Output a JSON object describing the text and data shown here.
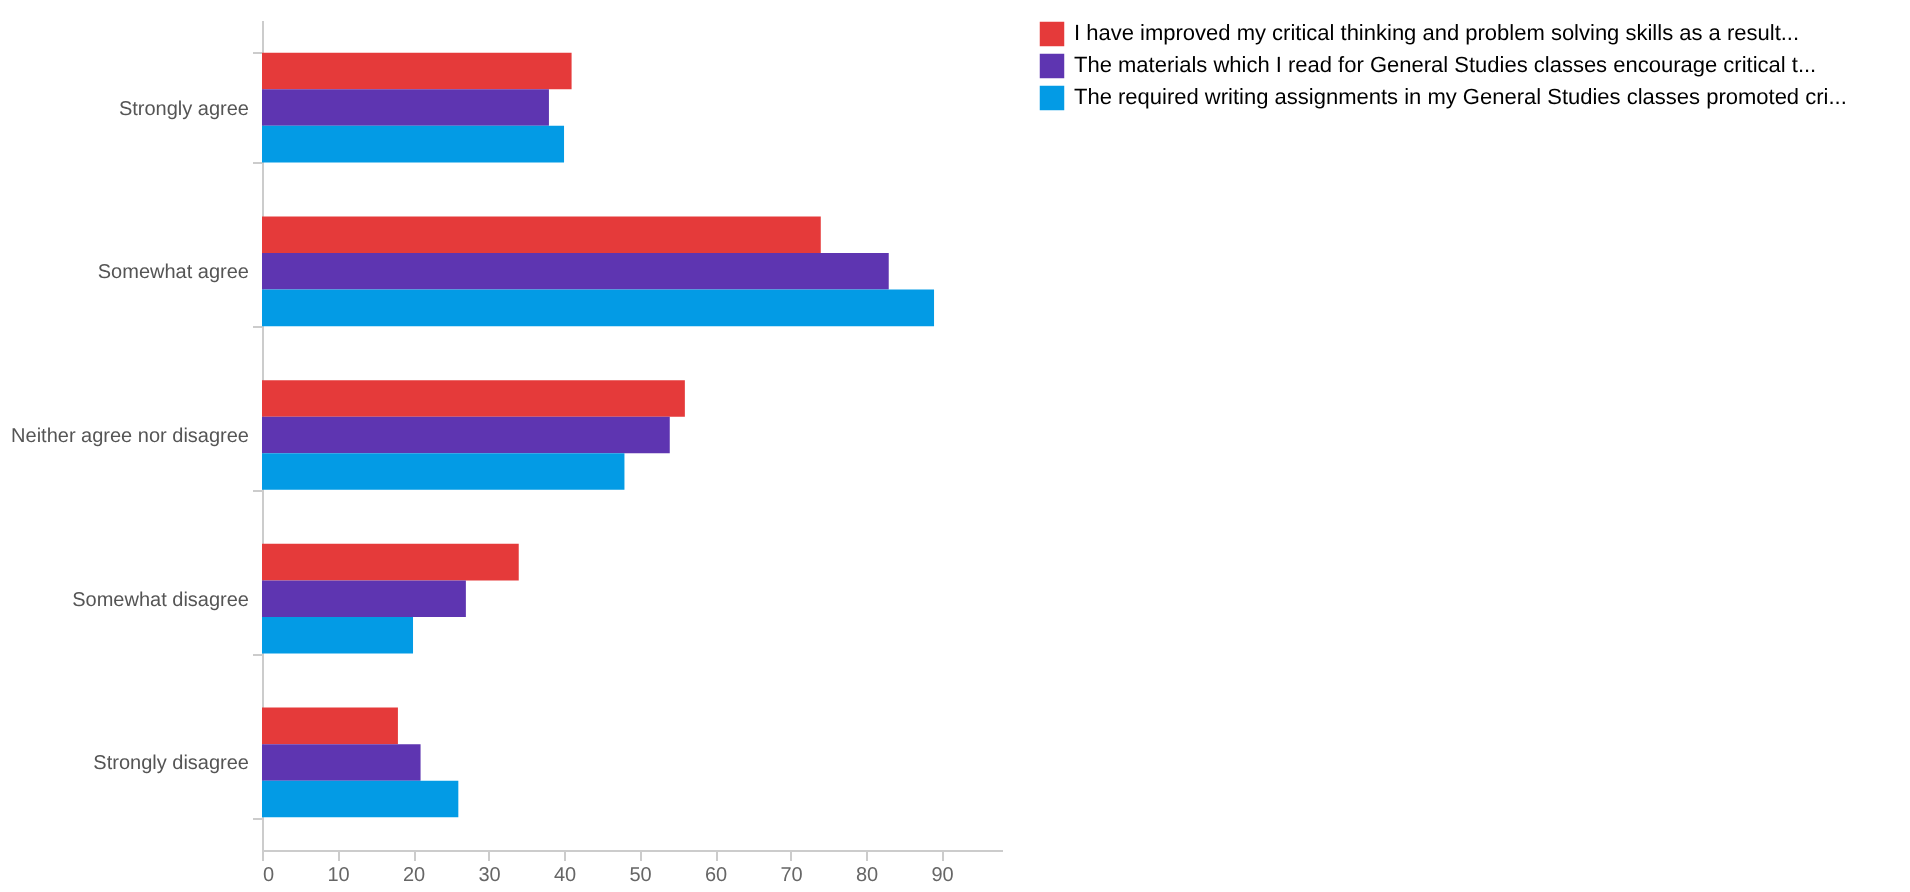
{
  "chart_data": {
    "type": "bar",
    "orientation": "horizontal",
    "categories": [
      "Strongly agree",
      "Somewhat agree",
      "Neither agree nor disagree",
      "Somewhat disagree",
      "Strongly disagree"
    ],
    "series": [
      {
        "name": "I have improved my critical thinking and problem solving skills as a result...",
        "color": "#e53a3a",
        "values": [
          41,
          74,
          56,
          34,
          18
        ]
      },
      {
        "name": "The materials which I read for General Studies classes encourage critical t...",
        "color": "#5e35b1",
        "values": [
          38,
          83,
          54,
          27,
          21
        ]
      },
      {
        "name": "The required writing assignments in my General Studies classes promoted cri...",
        "color": "#039be5",
        "values": [
          40,
          89,
          48,
          20,
          26
        ]
      }
    ],
    "xlim": [
      0,
      98
    ],
    "xticks": [
      0,
      10,
      20,
      30,
      40,
      50,
      60,
      70,
      80,
      90
    ],
    "grid": false,
    "legend": "right"
  }
}
